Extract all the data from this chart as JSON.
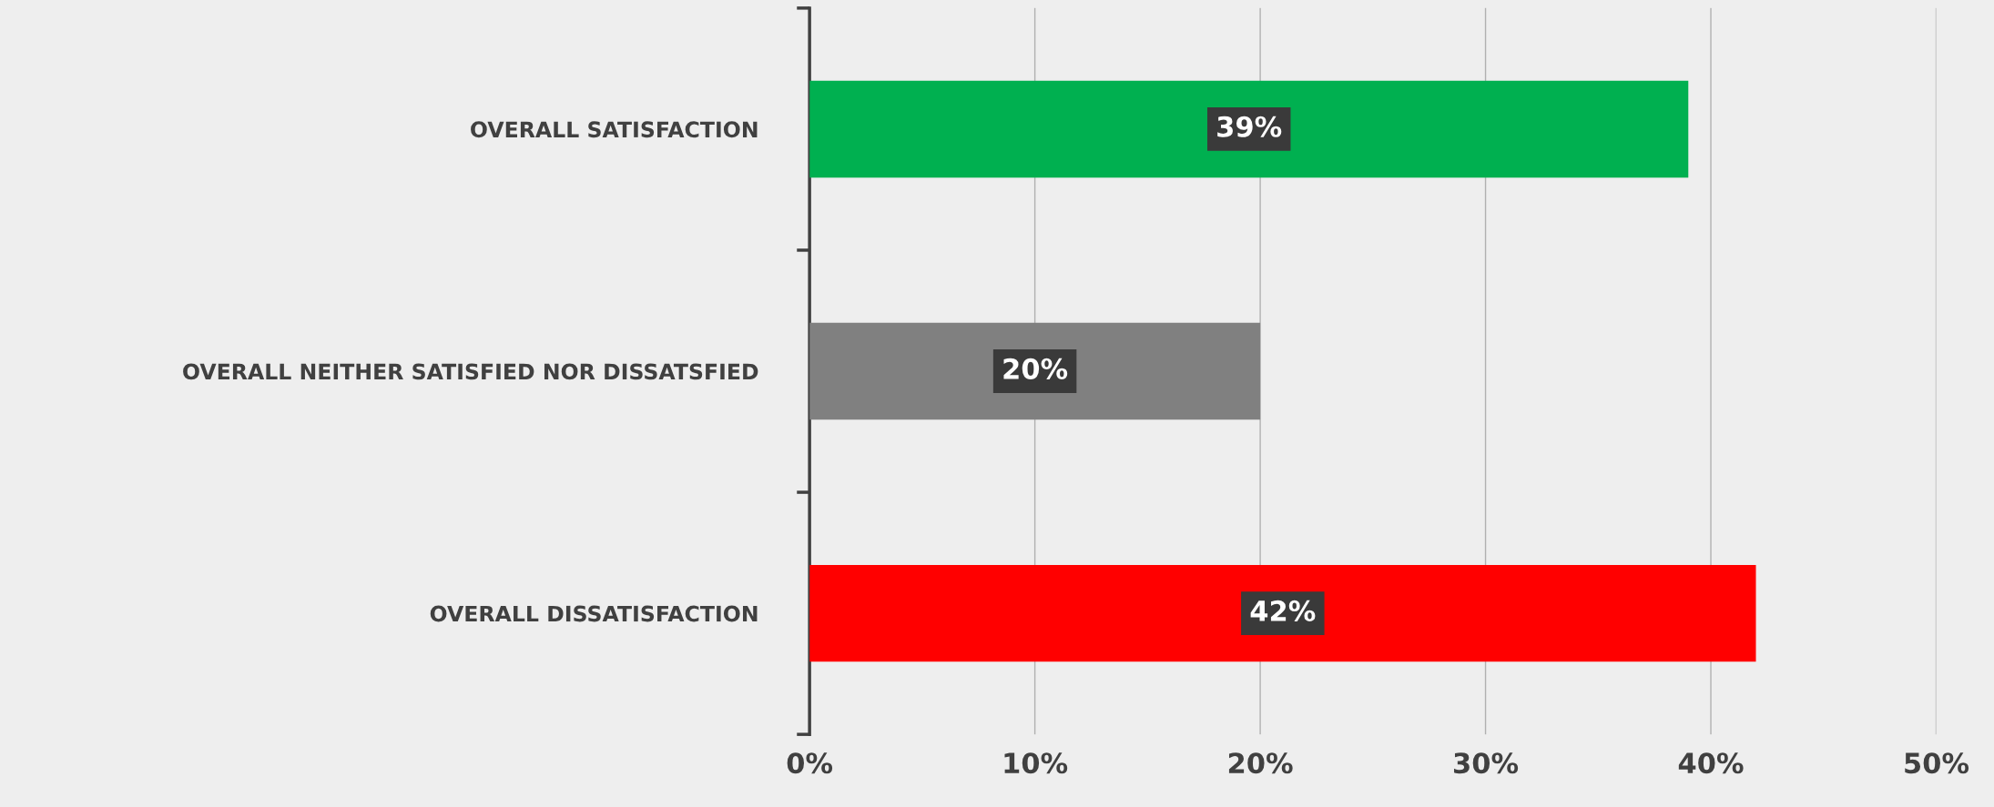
{
  "chart_data": {
    "type": "bar",
    "orientation": "horizontal",
    "categories": [
      "OVERALL SATISFACTION",
      "OVERALL NEITHER SATISFIED NOR DISSATSFIED",
      "OVERALL DISSATISFACTION"
    ],
    "values": [
      39,
      20,
      42
    ],
    "colors": [
      "#00b050",
      "#808080",
      "#ff0000"
    ],
    "value_labels": [
      "39%",
      "20%",
      "42%"
    ],
    "xlim": [
      0,
      50
    ],
    "xticks": [
      {
        "value": 0,
        "label": "0%"
      },
      {
        "value": 10,
        "label": "10%"
      },
      {
        "value": 20,
        "label": "20%"
      },
      {
        "value": 30,
        "label": "30%"
      },
      {
        "value": 40,
        "label": "40%"
      },
      {
        "value": 50,
        "label": "50%"
      }
    ],
    "grid": "x",
    "legend": false
  }
}
